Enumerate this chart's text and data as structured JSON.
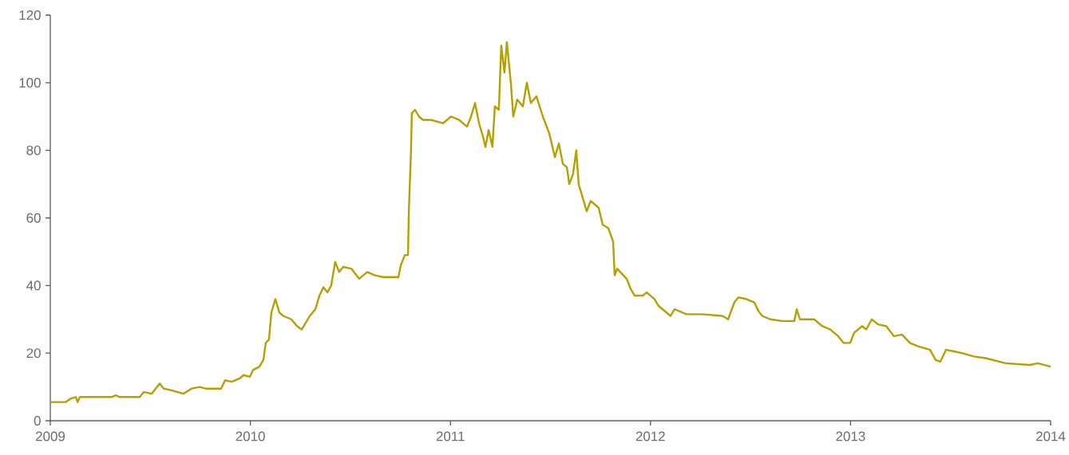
{
  "chart_data": {
    "type": "line",
    "color": "#b5a000",
    "x": [
      2009.0,
      2009.076,
      2009.1,
      2009.128,
      2009.136,
      2009.148,
      2009.307,
      2009.327,
      2009.347,
      2009.407,
      2009.447,
      2009.467,
      2009.507,
      2009.527,
      2009.547,
      2009.567,
      2009.606,
      2009.666,
      2009.706,
      2009.746,
      2009.778,
      2009.854,
      2009.874,
      2009.906,
      2009.946,
      2009.966,
      2009.998,
      2010.013,
      2010.045,
      2010.065,
      2010.077,
      2010.093,
      2010.105,
      2010.125,
      2010.145,
      2010.165,
      2010.205,
      2010.233,
      2010.257,
      2010.277,
      2010.297,
      2010.325,
      2010.345,
      2010.365,
      2010.385,
      2010.404,
      2010.424,
      2010.444,
      2010.464,
      2010.504,
      2010.544,
      2010.584,
      2010.624,
      2010.664,
      2010.74,
      2010.752,
      2010.772,
      2010.788,
      2010.792,
      2010.803,
      2010.807,
      2010.823,
      2010.843,
      2010.863,
      2010.903,
      2010.963,
      2011.003,
      2011.043,
      2011.083,
      2011.103,
      2011.123,
      2011.143,
      2011.163,
      2011.175,
      2011.191,
      2011.21,
      2011.222,
      2011.242,
      2011.254,
      2011.27,
      2011.282,
      2011.302,
      2011.314,
      2011.334,
      2011.362,
      2011.382,
      2011.402,
      2011.43,
      2011.462,
      2011.494,
      2011.522,
      2011.542,
      2011.562,
      2011.582,
      2011.594,
      2011.613,
      2011.629,
      2011.641,
      2011.661,
      2011.681,
      2011.701,
      2011.721,
      2011.741,
      2011.761,
      2011.789,
      2011.813,
      2011.821,
      2011.833,
      2011.849,
      2011.881,
      2011.901,
      2011.921,
      2011.961,
      2011.981,
      2012.0,
      2012.02,
      2012.04,
      2012.08,
      2012.1,
      2012.12,
      2012.18,
      2012.26,
      2012.36,
      2012.388,
      2012.419,
      2012.439,
      2012.479,
      2012.519,
      2012.539,
      2012.559,
      2012.599,
      2012.659,
      2012.719,
      2012.731,
      2012.747,
      2012.818,
      2012.858,
      2012.898,
      2012.938,
      2012.966,
      2012.998,
      2013.018,
      2013.058,
      2013.078,
      2013.106,
      2013.138,
      2013.178,
      2013.217,
      2013.257,
      2013.297,
      2013.337,
      2013.397,
      2013.425,
      2013.449,
      2013.477,
      2013.517,
      2013.557,
      2013.617,
      2013.676,
      2013.776,
      2013.896,
      2013.936,
      2014.0
    ],
    "values": [
      5.5,
      5.5,
      6.5,
      7,
      5.5,
      7,
      7,
      7.5,
      7,
      7,
      7,
      8.5,
      8,
      9.5,
      11,
      9.5,
      9,
      8,
      9.5,
      10,
      9.5,
      9.5,
      12,
      11.5,
      12.5,
      13.5,
      13,
      15,
      16,
      18,
      23,
      24,
      32,
      36,
      32,
      31,
      30,
      28,
      27,
      29,
      31,
      33,
      37,
      39.5,
      38,
      40,
      47,
      44,
      45.5,
      45,
      42,
      44,
      43,
      42.5,
      42.5,
      46,
      49,
      49,
      62,
      80,
      91,
      92,
      90,
      89,
      89,
      88,
      90,
      89,
      87,
      90,
      94,
      88,
      84,
      81,
      86,
      81,
      93,
      92,
      111,
      103,
      112,
      100,
      90,
      95,
      93,
      100,
      94,
      96,
      90,
      85,
      78,
      82,
      76,
      75,
      70,
      73,
      80,
      70,
      66,
      62,
      65,
      64,
      63,
      58,
      57,
      53,
      43,
      45,
      44,
      42,
      39,
      37,
      37,
      38,
      37,
      36,
      34,
      32,
      31,
      33,
      31.5,
      31.5,
      31,
      30,
      35,
      36.5,
      36,
      35,
      32.5,
      31,
      30,
      29.5,
      29.5,
      33,
      30,
      30,
      28,
      27,
      25,
      23,
      23,
      26,
      28,
      27,
      30,
      28.5,
      28,
      25,
      25.5,
      23,
      22,
      21,
      18,
      17.5,
      21,
      20.5,
      20,
      19,
      18.5,
      17,
      16.5,
      17,
      16
    ],
    "xlim": [
      2009,
      2014
    ],
    "ylim": [
      0,
      120
    ],
    "xticks": [
      2009,
      2010,
      2011,
      2012,
      2013,
      2014
    ],
    "yticks": [
      0,
      20,
      40,
      60,
      80,
      100,
      120
    ]
  }
}
